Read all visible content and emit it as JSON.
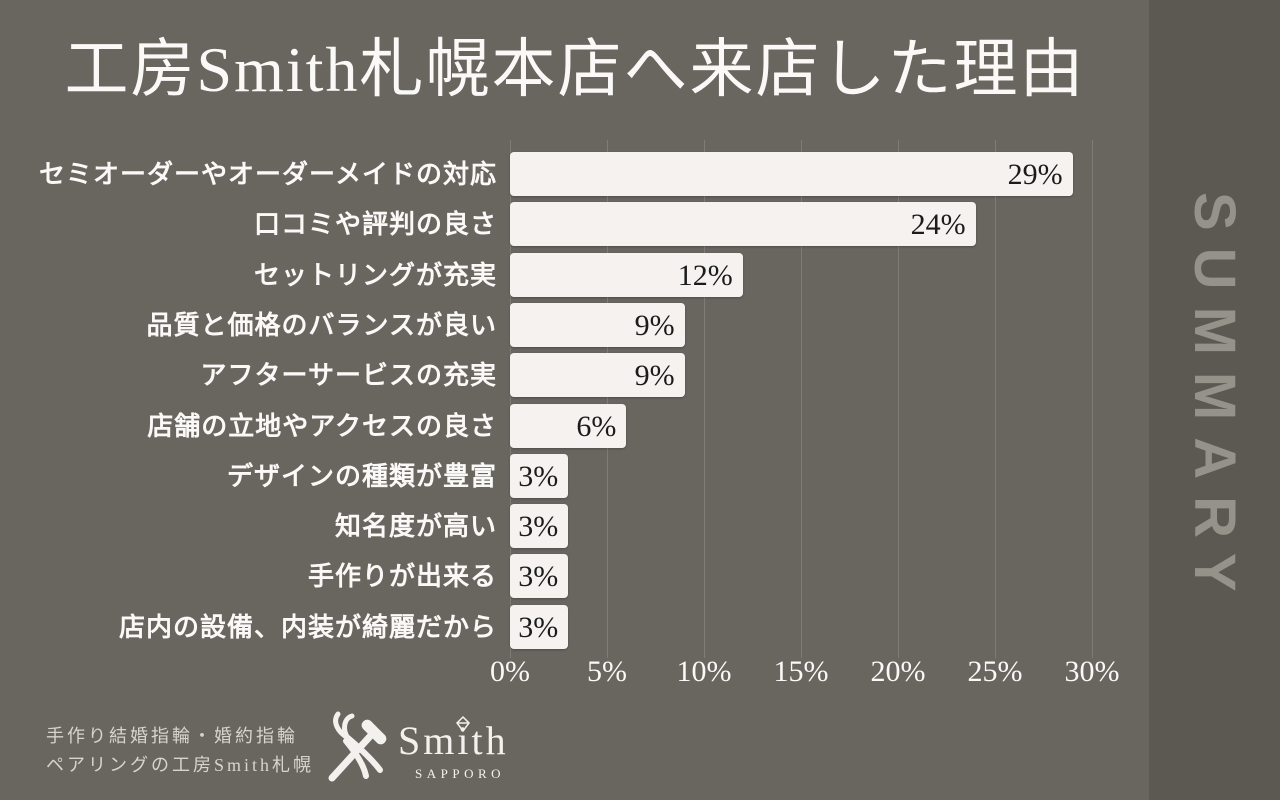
{
  "title": "工房Smith札幌本店へ来店した理由",
  "summary_label": "SUMMARY",
  "chart_data": {
    "type": "bar",
    "orientation": "horizontal",
    "title": "工房Smith札幌本店へ来店した理由",
    "categories": [
      "セミオーダーやオーダーメイドの対応",
      "口コミや評判の良さ",
      "セットリングが充実",
      "品質と価格のバランスが良い",
      "アフターサービスの充実",
      "店舗の立地やアクセスの良さ",
      "デザインの種類が豊富",
      "知名度が高い",
      "手作りが出来る",
      "店内の設備、内装が綺麗だから"
    ],
    "values": [
      29,
      24,
      12,
      9,
      9,
      6,
      3,
      3,
      3,
      3
    ],
    "value_labels": [
      "29%",
      "24%",
      "12%",
      "9%",
      "9%",
      "6%",
      "3%",
      "3%",
      "3%",
      "3%"
    ],
    "value_suffix": "%",
    "x_ticks": [
      "0%",
      "5%",
      "10%",
      "15%",
      "20%",
      "25%",
      "30%"
    ],
    "x_tick_values": [
      0,
      5,
      10,
      15,
      20,
      25,
      30
    ],
    "xlim": [
      0,
      30
    ],
    "grid": true,
    "legend": false,
    "bar_color": "#f5f2ef",
    "value_text_color": "#1b1b1b"
  },
  "footer": {
    "tagline_line1": "手作り結婚指輪・婚約指輪",
    "tagline_line2": "ペアリングの工房Smith札幌",
    "logo": {
      "brand": "Smith",
      "sub": "SAPPORO",
      "icon": "crossed-pliers-and-hammer"
    }
  },
  "colors": {
    "background": "#696660",
    "side_panel": "#5c5952",
    "summary_text": "#95928a",
    "bar": "#f5f2ef",
    "bar_value_text": "#1b1b1b",
    "text": "#faf9f7",
    "footer_text": "#d6d4cf",
    "gridline": "rgba(255,255,255,0.15)"
  }
}
